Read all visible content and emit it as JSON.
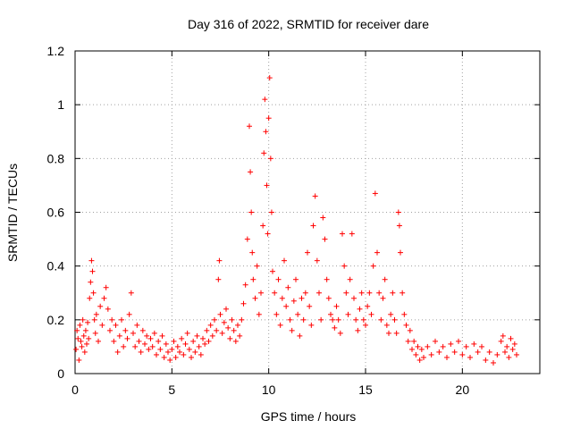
{
  "chart_data": {
    "type": "scatter",
    "title": "Day 316 of 2022, SRMTID for receiver dare",
    "xlabel": "GPS time / hours",
    "ylabel": "SRMTID / TECUs",
    "xlim": [
      0,
      24
    ],
    "ylim": [
      0,
      1.2
    ],
    "xticks": [
      0,
      5,
      10,
      15,
      20
    ],
    "yticks": [
      0,
      0.2,
      0.4,
      0.6,
      0.8,
      1,
      1.2
    ],
    "xtick_labels": [
      "0",
      "5",
      "10",
      "15",
      "20"
    ],
    "ytick_labels": [
      "0",
      "0.2",
      "0.4",
      "0.6",
      "0.8",
      "1",
      "1.2"
    ],
    "grid": true,
    "marker": "+",
    "color": "#ff0000",
    "series": [
      {
        "name": "SRMTID",
        "points": [
          [
            0.05,
            0.09
          ],
          [
            0.1,
            0.16
          ],
          [
            0.15,
            0.13
          ],
          [
            0.2,
            0.05
          ],
          [
            0.25,
            0.18
          ],
          [
            0.3,
            0.12
          ],
          [
            0.35,
            0.1
          ],
          [
            0.4,
            0.2
          ],
          [
            0.45,
            0.14
          ],
          [
            0.5,
            0.08
          ],
          [
            0.55,
            0.16
          ],
          [
            0.6,
            0.11
          ],
          [
            0.65,
            0.19
          ],
          [
            0.7,
            0.13
          ],
          [
            0.75,
            0.28
          ],
          [
            0.8,
            0.34
          ],
          [
            0.85,
            0.42
          ],
          [
            0.9,
            0.38
          ],
          [
            0.95,
            0.3
          ],
          [
            1.0,
            0.2
          ],
          [
            1.05,
            0.15
          ],
          [
            1.1,
            0.22
          ],
          [
            1.2,
            0.12
          ],
          [
            1.3,
            0.25
          ],
          [
            1.4,
            0.18
          ],
          [
            1.5,
            0.28
          ],
          [
            1.6,
            0.32
          ],
          [
            1.7,
            0.24
          ],
          [
            1.8,
            0.16
          ],
          [
            1.9,
            0.2
          ],
          [
            2.0,
            0.12
          ],
          [
            2.1,
            0.18
          ],
          [
            2.2,
            0.08
          ],
          [
            2.3,
            0.14
          ],
          [
            2.4,
            0.2
          ],
          [
            2.5,
            0.1
          ],
          [
            2.6,
            0.16
          ],
          [
            2.7,
            0.13
          ],
          [
            2.8,
            0.22
          ],
          [
            2.9,
            0.3
          ],
          [
            3.0,
            0.15
          ],
          [
            3.1,
            0.1
          ],
          [
            3.2,
            0.18
          ],
          [
            3.3,
            0.12
          ],
          [
            3.4,
            0.08
          ],
          [
            3.5,
            0.16
          ],
          [
            3.6,
            0.11
          ],
          [
            3.7,
            0.14
          ],
          [
            3.8,
            0.09
          ],
          [
            3.9,
            0.13
          ],
          [
            4.0,
            0.1
          ],
          [
            4.1,
            0.15
          ],
          [
            4.2,
            0.07
          ],
          [
            4.3,
            0.12
          ],
          [
            4.4,
            0.09
          ],
          [
            4.5,
            0.14
          ],
          [
            4.6,
            0.06
          ],
          [
            4.7,
            0.11
          ],
          [
            4.8,
            0.08
          ],
          [
            4.9,
            0.05
          ],
          [
            5.0,
            0.09
          ],
          [
            5.1,
            0.12
          ],
          [
            5.2,
            0.06
          ],
          [
            5.3,
            0.1
          ],
          [
            5.4,
            0.08
          ],
          [
            5.5,
            0.13
          ],
          [
            5.6,
            0.07
          ],
          [
            5.7,
            0.11
          ],
          [
            5.8,
            0.15
          ],
          [
            5.9,
            0.09
          ],
          [
            6.0,
            0.06
          ],
          [
            6.1,
            0.12
          ],
          [
            6.2,
            0.08
          ],
          [
            6.3,
            0.14
          ],
          [
            6.4,
            0.1
          ],
          [
            6.5,
            0.07
          ],
          [
            6.6,
            0.13
          ],
          [
            6.7,
            0.11
          ],
          [
            6.8,
            0.16
          ],
          [
            6.9,
            0.12
          ],
          [
            7.0,
            0.18
          ],
          [
            7.1,
            0.14
          ],
          [
            7.2,
            0.2
          ],
          [
            7.3,
            0.16
          ],
          [
            7.4,
            0.35
          ],
          [
            7.45,
            0.42
          ],
          [
            7.5,
            0.22
          ],
          [
            7.6,
            0.15
          ],
          [
            7.7,
            0.19
          ],
          [
            7.8,
            0.24
          ],
          [
            7.9,
            0.17
          ],
          [
            8.0,
            0.13
          ],
          [
            8.1,
            0.2
          ],
          [
            8.2,
            0.16
          ],
          [
            8.3,
            0.12
          ],
          [
            8.4,
            0.18
          ],
          [
            8.5,
            0.14
          ],
          [
            8.6,
            0.2
          ],
          [
            8.7,
            0.26
          ],
          [
            8.8,
            0.33
          ],
          [
            8.9,
            0.5
          ],
          [
            9.0,
            0.92
          ],
          [
            9.05,
            0.75
          ],
          [
            9.1,
            0.6
          ],
          [
            9.15,
            0.45
          ],
          [
            9.2,
            0.35
          ],
          [
            9.3,
            0.28
          ],
          [
            9.4,
            0.4
          ],
          [
            9.5,
            0.22
          ],
          [
            9.6,
            0.3
          ],
          [
            9.7,
            0.55
          ],
          [
            9.75,
            0.82
          ],
          [
            9.8,
            1.02
          ],
          [
            9.85,
            0.9
          ],
          [
            9.9,
            0.7
          ],
          [
            9.95,
            0.52
          ],
          [
            10.0,
            0.95
          ],
          [
            10.05,
            1.1
          ],
          [
            10.1,
            0.8
          ],
          [
            10.15,
            0.6
          ],
          [
            10.2,
            0.38
          ],
          [
            10.3,
            0.3
          ],
          [
            10.4,
            0.22
          ],
          [
            10.5,
            0.35
          ],
          [
            10.6,
            0.18
          ],
          [
            10.7,
            0.28
          ],
          [
            10.8,
            0.42
          ],
          [
            10.9,
            0.25
          ],
          [
            11.0,
            0.32
          ],
          [
            11.1,
            0.2
          ],
          [
            11.2,
            0.16
          ],
          [
            11.3,
            0.27
          ],
          [
            11.4,
            0.35
          ],
          [
            11.5,
            0.22
          ],
          [
            11.6,
            0.14
          ],
          [
            11.7,
            0.28
          ],
          [
            11.8,
            0.2
          ],
          [
            11.9,
            0.3
          ],
          [
            12.0,
            0.45
          ],
          [
            12.1,
            0.25
          ],
          [
            12.2,
            0.18
          ],
          [
            12.3,
            0.55
          ],
          [
            12.4,
            0.66
          ],
          [
            12.5,
            0.42
          ],
          [
            12.6,
            0.3
          ],
          [
            12.7,
            0.2
          ],
          [
            12.8,
            0.58
          ],
          [
            12.9,
            0.5
          ],
          [
            13.0,
            0.35
          ],
          [
            13.1,
            0.28
          ],
          [
            13.2,
            0.22
          ],
          [
            13.3,
            0.2
          ],
          [
            13.4,
            0.17
          ],
          [
            13.5,
            0.25
          ],
          [
            13.6,
            0.2
          ],
          [
            13.7,
            0.15
          ],
          [
            13.8,
            0.52
          ],
          [
            13.9,
            0.4
          ],
          [
            14.0,
            0.3
          ],
          [
            14.1,
            0.22
          ],
          [
            14.2,
            0.35
          ],
          [
            14.3,
            0.52
          ],
          [
            14.4,
            0.28
          ],
          [
            14.5,
            0.2
          ],
          [
            14.6,
            0.16
          ],
          [
            14.7,
            0.24
          ],
          [
            14.8,
            0.3
          ],
          [
            14.9,
            0.2
          ],
          [
            15.0,
            0.18
          ],
          [
            15.1,
            0.25
          ],
          [
            15.2,
            0.3
          ],
          [
            15.3,
            0.22
          ],
          [
            15.4,
            0.4
          ],
          [
            15.5,
            0.67
          ],
          [
            15.6,
            0.45
          ],
          [
            15.7,
            0.3
          ],
          [
            15.8,
            0.2
          ],
          [
            15.9,
            0.28
          ],
          [
            16.0,
            0.35
          ],
          [
            16.1,
            0.18
          ],
          [
            16.2,
            0.15
          ],
          [
            16.3,
            0.22
          ],
          [
            16.4,
            0.3
          ],
          [
            16.5,
            0.2
          ],
          [
            16.6,
            0.15
          ],
          [
            16.7,
            0.6
          ],
          [
            16.75,
            0.55
          ],
          [
            16.8,
            0.45
          ],
          [
            16.9,
            0.3
          ],
          [
            17.0,
            0.22
          ],
          [
            17.1,
            0.18
          ],
          [
            17.2,
            0.12
          ],
          [
            17.3,
            0.16
          ],
          [
            17.4,
            0.09
          ],
          [
            17.5,
            0.12
          ],
          [
            17.6,
            0.07
          ],
          [
            17.7,
            0.1
          ],
          [
            17.8,
            0.05
          ],
          [
            17.9,
            0.09
          ],
          [
            18.0,
            0.06
          ],
          [
            18.2,
            0.1
          ],
          [
            18.4,
            0.07
          ],
          [
            18.6,
            0.12
          ],
          [
            18.8,
            0.08
          ],
          [
            19.0,
            0.1
          ],
          [
            19.2,
            0.06
          ],
          [
            19.4,
            0.11
          ],
          [
            19.6,
            0.08
          ],
          [
            19.8,
            0.12
          ],
          [
            20.0,
            0.07
          ],
          [
            20.2,
            0.1
          ],
          [
            20.4,
            0.06
          ],
          [
            20.6,
            0.11
          ],
          [
            20.8,
            0.08
          ],
          [
            21.0,
            0.1
          ],
          [
            21.2,
            0.05
          ],
          [
            21.4,
            0.08
          ],
          [
            21.6,
            0.04
          ],
          [
            21.8,
            0.07
          ],
          [
            22.0,
            0.12
          ],
          [
            22.1,
            0.14
          ],
          [
            22.2,
            0.08
          ],
          [
            22.3,
            0.1
          ],
          [
            22.4,
            0.06
          ],
          [
            22.5,
            0.13
          ],
          [
            22.6,
            0.09
          ],
          [
            22.7,
            0.11
          ],
          [
            22.8,
            0.07
          ]
        ]
      }
    ]
  }
}
